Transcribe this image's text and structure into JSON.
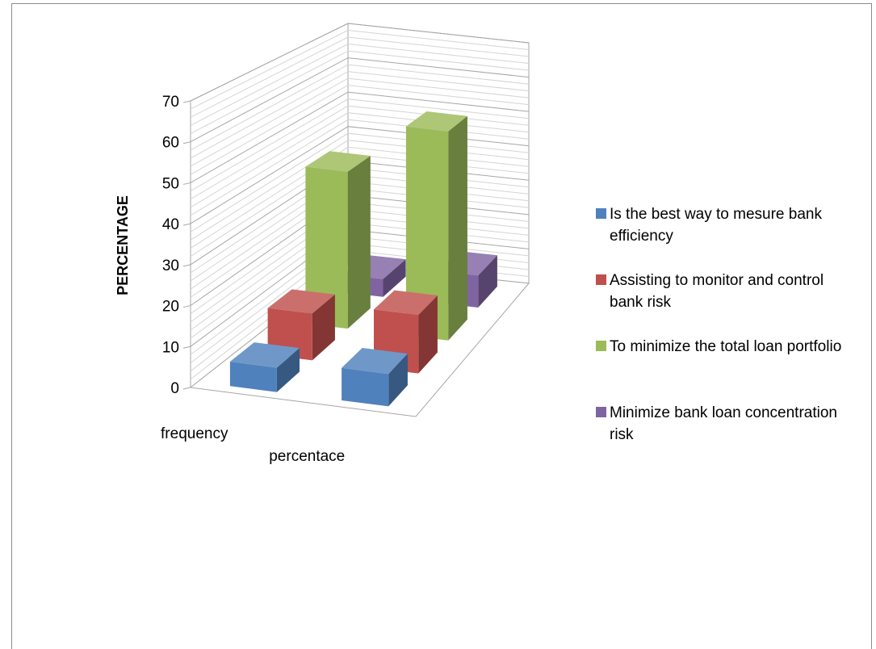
{
  "chart_data": {
    "type": "bar",
    "subtype": "3d-column",
    "categories": [
      "frequency",
      "percentace"
    ],
    "ylabel": "PERCENTAGE",
    "ylim": [
      0,
      70
    ],
    "yticks": [
      0,
      10,
      20,
      30,
      40,
      50,
      60,
      70
    ],
    "grid": true,
    "legend_position": "right",
    "series": [
      {
        "name": "Is the best way to mesure bank efficiency",
        "color": "#4F81BD",
        "values": [
          6,
          8
        ]
      },
      {
        "name": "Assisting to monitor and control bank risk",
        "color": "#C0504D",
        "values": [
          12,
          15
        ]
      },
      {
        "name": "To minimize the total loan portfolio",
        "color": "#9BBB59",
        "values": [
          42,
          56
        ]
      },
      {
        "name": "Minimize bank loan concentration risk",
        "color": "#8064A2",
        "values": [
          5,
          9
        ]
      }
    ]
  }
}
